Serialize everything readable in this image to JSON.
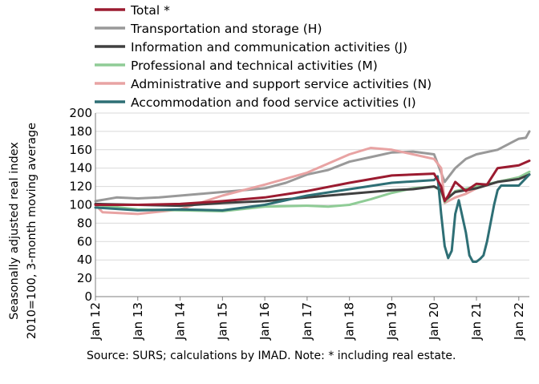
{
  "chart_data": {
    "type": "line",
    "title": "",
    "ylabel_lines": [
      "Seasonally adjusted real index",
      "2010=100, 3-month moving average"
    ],
    "xlabel": "",
    "ylim": [
      0,
      200
    ],
    "yticks": [
      0,
      20,
      40,
      60,
      80,
      100,
      120,
      140,
      160,
      180,
      200
    ],
    "x_start": "Jan 12",
    "x_end": "Apr 22",
    "xticks": [
      "Jan 12",
      "Jan 13",
      "Jan 14",
      "Jan 15",
      "Jan 16",
      "Jan 17",
      "Jan 18",
      "Jan 19",
      "Jan 20",
      "Jan 21",
      "Jan 22"
    ],
    "grid": true,
    "legend_position": "top",
    "note": "Source:  SURS; calculations by IMAD. Note: * including real estate.",
    "series": [
      {
        "name": "Total *",
        "color": "#9b1b30",
        "width": 3,
        "points": [
          [
            "Jan 12",
            100
          ],
          [
            "Jan 13",
            100
          ],
          [
            "Jan 14",
            101
          ],
          [
            "Jan 15",
            104
          ],
          [
            "Jan 16",
            108
          ],
          [
            "Jan 17",
            115
          ],
          [
            "Jan 18",
            124
          ],
          [
            "Jan 19",
            132
          ],
          [
            "Jan 20",
            134
          ],
          [
            "Mar 20",
            120
          ],
          [
            "Apr 20",
            104
          ],
          [
            "May 20",
            110
          ],
          [
            "Jul 20",
            125
          ],
          [
            "Oct 20",
            115
          ],
          [
            "Jan 21",
            123
          ],
          [
            "Apr 21",
            122
          ],
          [
            "Jul 21",
            140
          ],
          [
            "Jan 22",
            143
          ],
          [
            "Apr 22",
            148
          ]
        ]
      },
      {
        "name": "Transportation and storage (H)",
        "color": "#999999",
        "width": 3,
        "points": [
          [
            "Jan 12",
            104
          ],
          [
            "Jul 12",
            108
          ],
          [
            "Jan 13",
            107
          ],
          [
            "Jul 13",
            108
          ],
          [
            "Jan 14",
            110
          ],
          [
            "Jul 14",
            112
          ],
          [
            "Jan 15",
            114
          ],
          [
            "Jul 15",
            116
          ],
          [
            "Jan 16",
            118
          ],
          [
            "Jul 16",
            124
          ],
          [
            "Jan 17",
            133
          ],
          [
            "Jul 17",
            138
          ],
          [
            "Jan 18",
            147
          ],
          [
            "Jul 18",
            152
          ],
          [
            "Jan 19",
            157
          ],
          [
            "Jul 19",
            158
          ],
          [
            "Jan 20",
            155
          ],
          [
            "Mar 20",
            135
          ],
          [
            "Apr 20",
            125
          ],
          [
            "Jul 20",
            140
          ],
          [
            "Oct 20",
            150
          ],
          [
            "Jan 21",
            155
          ],
          [
            "Jul 21",
            160
          ],
          [
            "Jan 22",
            172
          ],
          [
            "Mar 22",
            173
          ],
          [
            "Apr 22",
            180
          ]
        ]
      },
      {
        "name": "Information and communication activities (J)",
        "color": "#404040",
        "width": 3,
        "points": [
          [
            "Jan 12",
            101
          ],
          [
            "Jan 13",
            100
          ],
          [
            "Jan 14",
            99
          ],
          [
            "Jan 15",
            102
          ],
          [
            "Jan 16",
            104
          ],
          [
            "Jan 17",
            108
          ],
          [
            "Jul 17",
            110
          ],
          [
            "Jan 18",
            112
          ],
          [
            "Jul 18",
            114
          ],
          [
            "Jan 19",
            116
          ],
          [
            "Jul 19",
            117
          ],
          [
            "Jan 20",
            120
          ],
          [
            "Mar 20",
            116
          ],
          [
            "Apr 20",
            105
          ],
          [
            "Jul 20",
            114
          ],
          [
            "Jan 21",
            118
          ],
          [
            "Jul 21",
            125
          ],
          [
            "Jan 22",
            128
          ],
          [
            "Apr 22",
            133
          ]
        ]
      },
      {
        "name": "Professional and technical activities (M)",
        "color": "#8fcc96",
        "width": 3,
        "points": [
          [
            "Jan 12",
            100
          ],
          [
            "Jan 13",
            95
          ],
          [
            "Jan 14",
            94
          ],
          [
            "Jan 15",
            93
          ],
          [
            "Jan 16",
            98
          ],
          [
            "Jan 17",
            99
          ],
          [
            "Jul 17",
            98
          ],
          [
            "Jan 18",
            100
          ],
          [
            "Jul 18",
            106
          ],
          [
            "Jan 19",
            113
          ],
          [
            "Jul 19",
            118
          ],
          [
            "Jan 20",
            120
          ],
          [
            "Mar 20",
            115
          ],
          [
            "Apr 20",
            103
          ],
          [
            "Jul 20",
            115
          ],
          [
            "Jan 21",
            120
          ],
          [
            "Jul 21",
            125
          ],
          [
            "Jan 22",
            130
          ],
          [
            "Apr 22",
            136
          ]
        ]
      },
      {
        "name": "Administrative and support service activities (N)",
        "color": "#e8a3a3",
        "width": 3,
        "points": [
          [
            "Jan 12",
            100
          ],
          [
            "Mar 12",
            92
          ],
          [
            "Jan 13",
            90
          ],
          [
            "Jan 14",
            95
          ],
          [
            "Jan 15",
            110
          ],
          [
            "Jan 16",
            122
          ],
          [
            "Jan 17",
            135
          ],
          [
            "Jan 18",
            155
          ],
          [
            "Jul 18",
            162
          ],
          [
            "Jan 19",
            160
          ],
          [
            "Jul 19",
            155
          ],
          [
            "Jan 20",
            150
          ],
          [
            "Mar 20",
            140
          ],
          [
            "Apr 20",
            102
          ],
          [
            "Jul 20",
            108
          ],
          [
            "Oct 20",
            112
          ],
          [
            "Jan 21",
            118
          ],
          [
            "Jul 21",
            125
          ],
          [
            "Jan 22",
            130
          ],
          [
            "Apr 22",
            133
          ]
        ]
      },
      {
        "name": "Accommodation and food service activities (I)",
        "color": "#2e6f75",
        "width": 3,
        "points": [
          [
            "Jan 12",
            97
          ],
          [
            "Jan 13",
            94
          ],
          [
            "Jan 14",
            95
          ],
          [
            "Jan 15",
            94
          ],
          [
            "Jan 16",
            100
          ],
          [
            "Jan 17",
            110
          ],
          [
            "Jan 18",
            117
          ],
          [
            "Jan 19",
            124
          ],
          [
            "Jan 20",
            127
          ],
          [
            "Feb 20",
            131
          ],
          [
            "Mar 20",
            90
          ],
          [
            "Apr 20",
            55
          ],
          [
            "May 20",
            42
          ],
          [
            "Jun 20",
            50
          ],
          [
            "Jul 20",
            90
          ],
          [
            "Aug 20",
            105
          ],
          [
            "Oct 20",
            70
          ],
          [
            "Nov 20",
            45
          ],
          [
            "Dec 20",
            38
          ],
          [
            "Jan 21",
            38
          ],
          [
            "Feb 21",
            41
          ],
          [
            "Mar 21",
            45
          ],
          [
            "Apr 21",
            60
          ],
          [
            "Jun 21",
            100
          ],
          [
            "Jul 21",
            116
          ],
          [
            "Aug 21",
            121
          ],
          [
            "Jan 22",
            121
          ],
          [
            "Apr 22",
            133
          ]
        ]
      }
    ]
  }
}
